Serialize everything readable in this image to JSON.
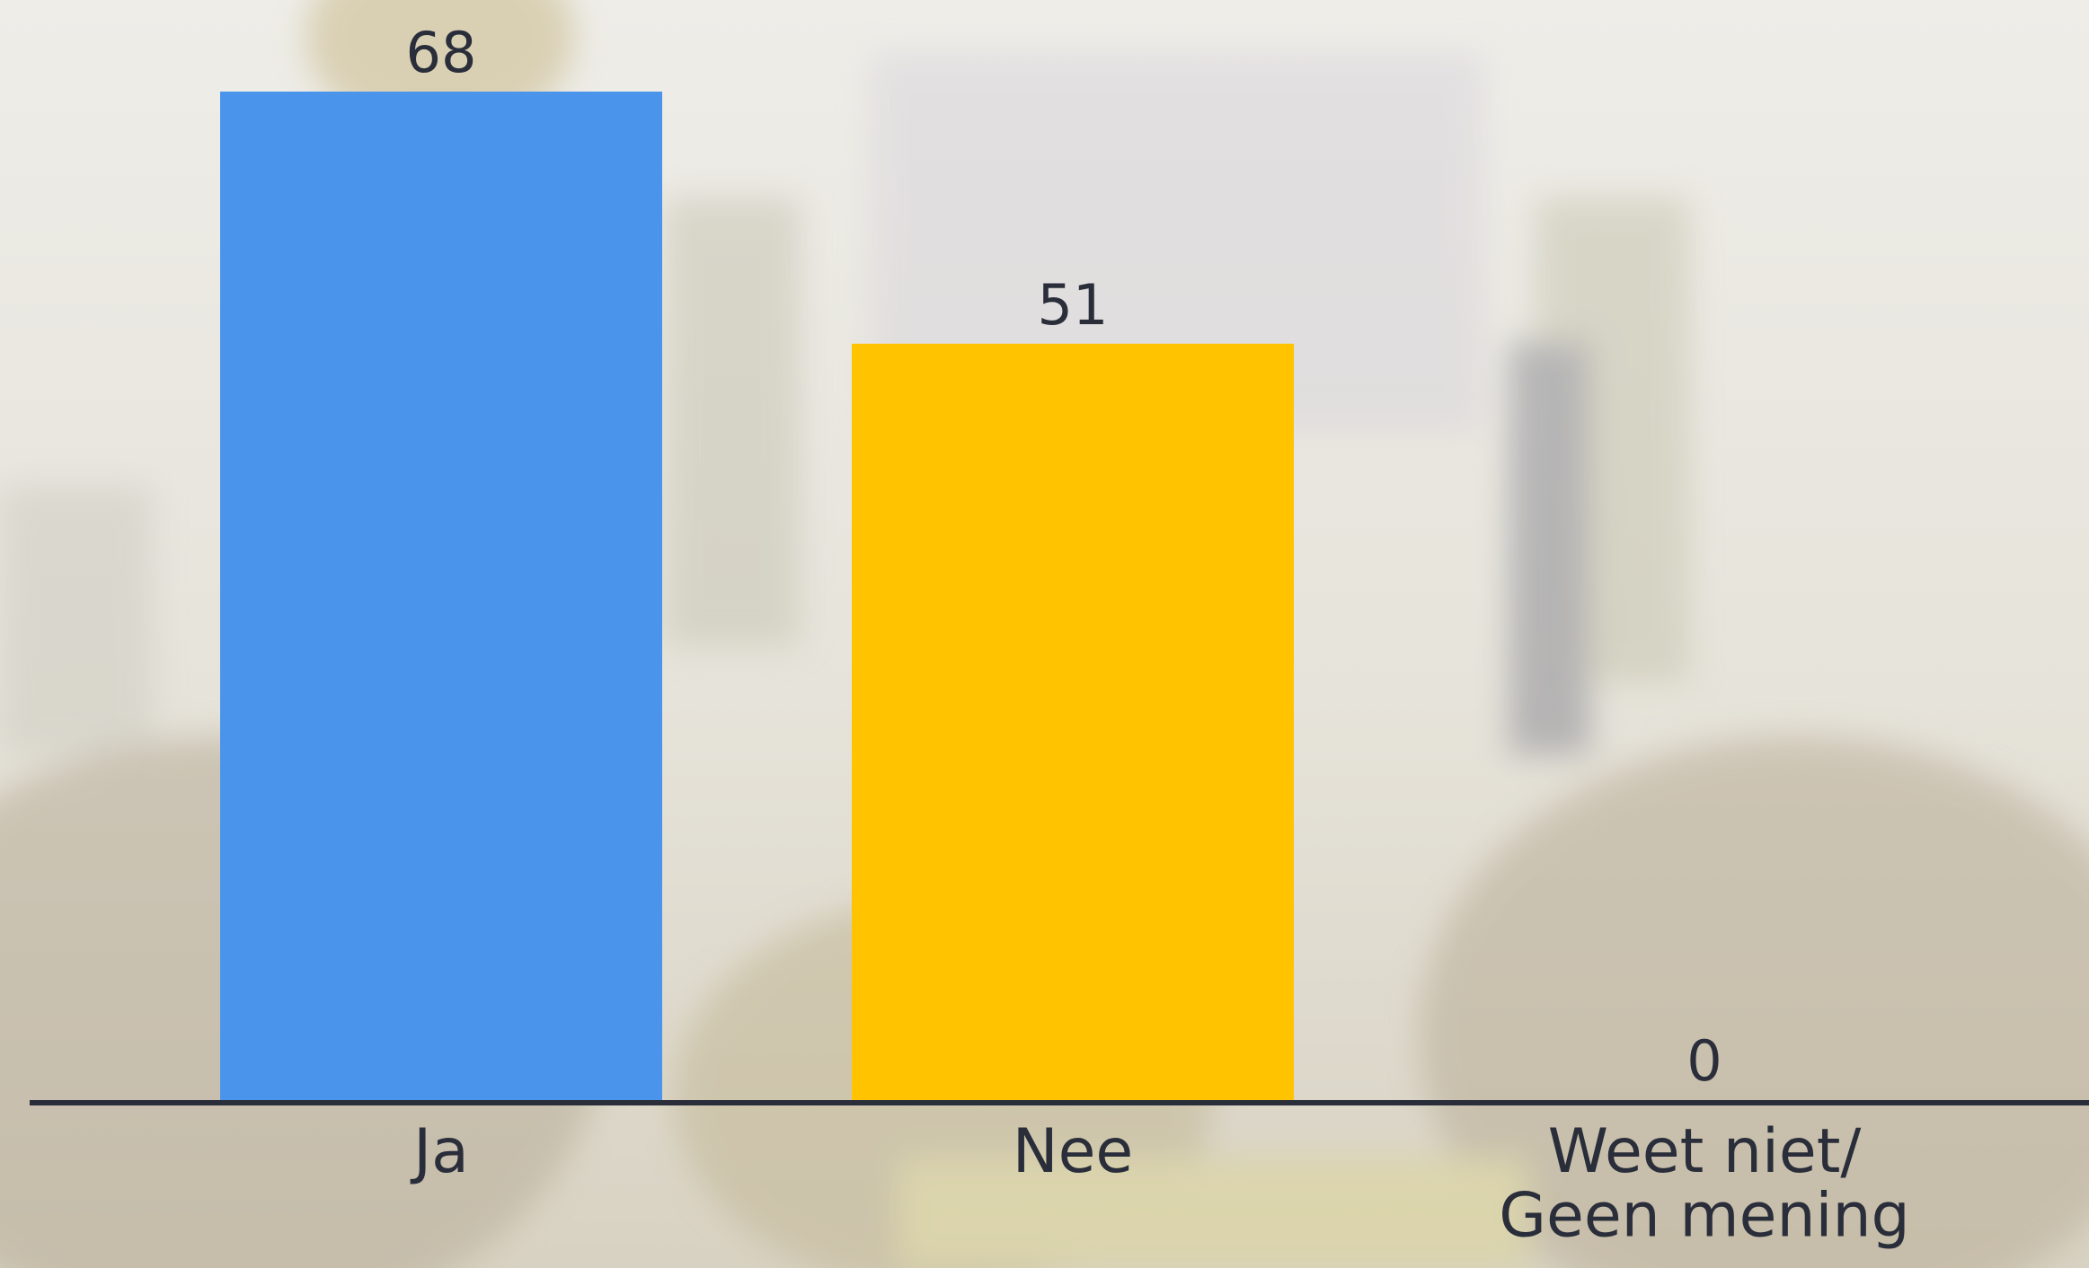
{
  "chart_data": {
    "type": "bar",
    "categories": [
      "Ja",
      "Nee",
      "Weet niet/\nGeen mening"
    ],
    "values": [
      68,
      51,
      0
    ],
    "colors": [
      "#4a94ec",
      "#ffc300",
      "#9aa0a8"
    ]
  }
}
